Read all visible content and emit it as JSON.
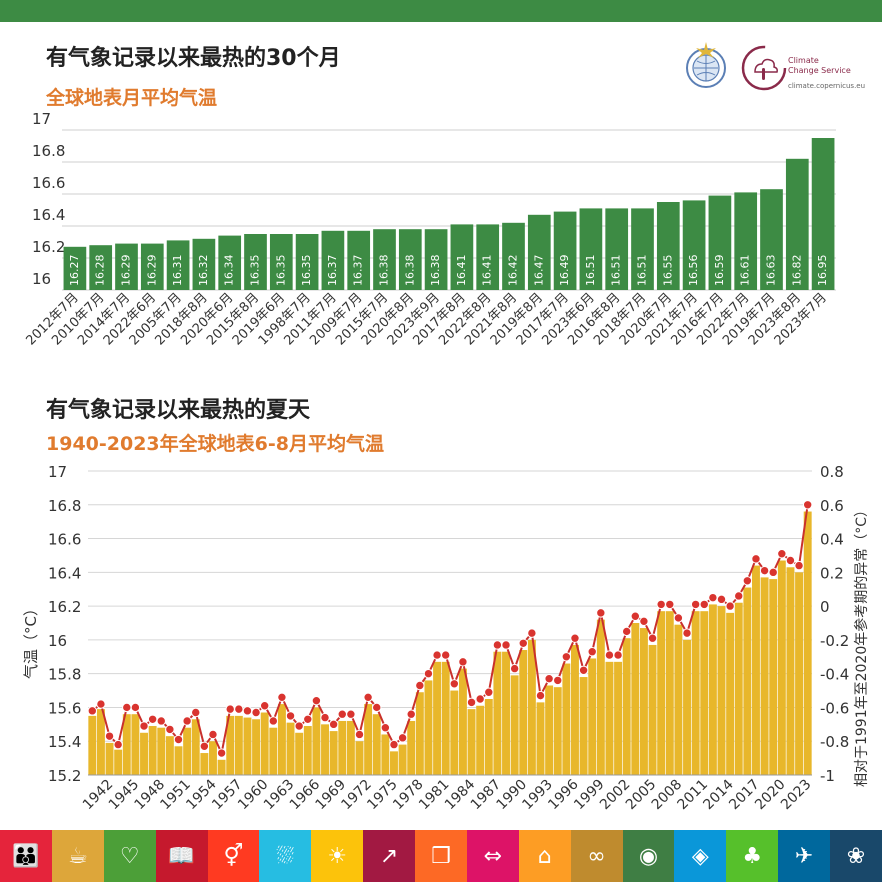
{
  "header": {
    "bar_color": "#3d8b44"
  },
  "chart1_title": "有气象记录以来最热的30个月",
  "chart1_subtitle": "全球地表月平均气温",
  "chart2_title": "有气象记录以来最热的夏天",
  "chart2_subtitle": "1940-2023年全球地表6-8月平均气温",
  "logos": {
    "c3s_line1": "Climate",
    "c3s_line2": "Change Service",
    "c3s_url": "climate.copernicus.eu"
  },
  "colors": {
    "title": "#222222",
    "subtitle": "#e07b2e",
    "bar_green": "#3d8b44",
    "bar_gold": "#e8b72b",
    "line_red": "#c9302c",
    "dot_red": "#d9342f"
  },
  "chart_data": [
    {
      "type": "bar",
      "title": "有气象记录以来最热的30个月",
      "subtitle": "全球地表月平均气温",
      "categories": [
        "2012年7月",
        "2010年7月",
        "2014年7月",
        "2022年6月",
        "2005年7月",
        "2018年8月",
        "2020年6月",
        "2015年8月",
        "2019年6月",
        "1998年7月",
        "2011年7月",
        "2009年7月",
        "2015年7月",
        "2020年8月",
        "2023年9月",
        "2017年8月",
        "2022年8月",
        "2021年8月",
        "2019年8月",
        "2017年7月",
        "2023年6月",
        "2016年8月",
        "2018年7月",
        "2020年7月",
        "2021年7月",
        "2016年7月",
        "2022年7月",
        "2019年7月",
        "2023年8月",
        "2023年7月"
      ],
      "values": [
        16.27,
        16.28,
        16.29,
        16.29,
        16.31,
        16.32,
        16.34,
        16.35,
        16.35,
        16.35,
        16.37,
        16.37,
        16.38,
        16.38,
        16.38,
        16.41,
        16.41,
        16.42,
        16.47,
        16.49,
        16.51,
        16.51,
        16.51,
        16.55,
        16.56,
        16.59,
        16.61,
        16.63,
        16.82,
        16.95
      ],
      "y_ticks": [
        "17",
        "16.8",
        "16.6",
        "16.4",
        "16.2",
        "16"
      ],
      "ylim": [
        16,
        17
      ]
    },
    {
      "type": "bar+line",
      "title": "有气象记录以来最热的夏天",
      "subtitle": "1940-2023年全球地表6-8月平均气温",
      "years_start": 1940,
      "x_tick_labels": [
        "1942",
        "1945",
        "1948",
        "1951",
        "1954",
        "1957",
        "1960",
        "1963",
        "1966",
        "1969",
        "1972",
        "1975",
        "1978",
        "1981",
        "1984",
        "1987",
        "1990",
        "1993",
        "1996",
        "1999",
        "2002",
        "2005",
        "2008",
        "2011",
        "2014",
        "2017",
        "2020",
        "2023"
      ],
      "values": [
        15.55,
        15.59,
        15.39,
        15.35,
        15.56,
        15.56,
        15.45,
        15.49,
        15.48,
        15.43,
        15.37,
        15.48,
        15.53,
        15.33,
        15.4,
        15.29,
        15.55,
        15.55,
        15.54,
        15.53,
        15.57,
        15.48,
        15.62,
        15.51,
        15.45,
        15.49,
        15.6,
        15.5,
        15.46,
        15.52,
        15.52,
        15.4,
        15.62,
        15.56,
        15.44,
        15.34,
        15.38,
        15.52,
        15.69,
        15.76,
        15.87,
        15.87,
        15.7,
        15.83,
        15.59,
        15.61,
        15.65,
        15.93,
        15.93,
        15.79,
        15.94,
        16.0,
        15.63,
        15.73,
        15.72,
        15.86,
        15.97,
        15.78,
        15.89,
        16.12,
        15.87,
        15.87,
        16.01,
        16.1,
        16.07,
        15.97,
        16.17,
        16.17,
        16.09,
        16.0,
        16.17,
        16.17,
        16.21,
        16.2,
        16.16,
        16.22,
        16.31,
        16.44,
        16.37,
        16.36,
        16.47,
        16.43,
        16.4,
        16.76
      ],
      "anomalies": [
        -0.62,
        -0.58,
        -0.77,
        -0.82,
        -0.6,
        -0.6,
        -0.71,
        -0.67,
        -0.68,
        -0.73,
        -0.79,
        -0.68,
        -0.63,
        -0.83,
        -0.76,
        -0.87,
        -0.61,
        -0.61,
        -0.62,
        -0.63,
        -0.59,
        -0.68,
        -0.54,
        -0.65,
        -0.71,
        -0.67,
        -0.56,
        -0.66,
        -0.7,
        -0.64,
        -0.64,
        -0.76,
        -0.54,
        -0.6,
        -0.72,
        -0.82,
        -0.78,
        -0.64,
        -0.47,
        -0.4,
        -0.29,
        -0.29,
        -0.46,
        -0.33,
        -0.57,
        -0.55,
        -0.51,
        -0.23,
        -0.23,
        -0.37,
        -0.22,
        -0.16,
        -0.53,
        -0.43,
        -0.44,
        -0.3,
        -0.19,
        -0.38,
        -0.27,
        -0.04,
        -0.29,
        -0.29,
        -0.15,
        -0.06,
        -0.09,
        -0.19,
        0.01,
        0.01,
        -0.07,
        -0.16,
        0.01,
        0.01,
        0.05,
        0.04,
        0.0,
        0.06,
        0.15,
        0.28,
        0.21,
        0.2,
        0.31,
        0.27,
        0.24,
        0.6
      ],
      "y_left_label": "气温（°C）",
      "y_right_label": "相对于1991年至2020年参考期的异常（°C）",
      "y_left_ticks": [
        "17",
        "16.8",
        "16.6",
        "16.4",
        "16.2",
        "16",
        "15.8",
        "15.6",
        "15.4",
        "15.2"
      ],
      "y_right_ticks": [
        "0.8",
        "0.6",
        "0.4",
        "0.2",
        "0",
        "-0.2",
        "-0.4",
        "-0.6",
        "-0.8",
        "-1"
      ],
      "ylim_left": [
        15.2,
        17
      ],
      "ylim_right": [
        -1,
        0.8
      ]
    }
  ],
  "sdg": [
    {
      "icon": "people-icon",
      "glyph": "👪",
      "color": "#e5243b"
    },
    {
      "icon": "bowl-icon",
      "glyph": "☕",
      "color": "#dda63a"
    },
    {
      "icon": "heartbeat-icon",
      "glyph": "♡",
      "color": "#4c9f38"
    },
    {
      "icon": "book-icon",
      "glyph": "📖",
      "color": "#c5192d"
    },
    {
      "icon": "gender-icon",
      "glyph": "⚥",
      "color": "#ff3a21"
    },
    {
      "icon": "water-icon",
      "glyph": "⛆",
      "color": "#26bde2"
    },
    {
      "icon": "sun-icon",
      "glyph": "☀",
      "color": "#fcc30b"
    },
    {
      "icon": "growth-chart-icon",
      "glyph": "↗",
      "color": "#a21942"
    },
    {
      "icon": "cubes-icon",
      "glyph": "❒",
      "color": "#fd6925"
    },
    {
      "icon": "equality-arrows-icon",
      "glyph": "⇔",
      "color": "#dd1367"
    },
    {
      "icon": "city-icon",
      "glyph": "⌂",
      "color": "#fd9d24"
    },
    {
      "icon": "infinity-icon",
      "glyph": "∞",
      "color": "#bf8b2e"
    },
    {
      "icon": "eye-globe-icon",
      "glyph": "◉",
      "color": "#3f7e44"
    },
    {
      "icon": "fish-icon",
      "glyph": "◈",
      "color": "#0a97d9"
    },
    {
      "icon": "tree-icon",
      "glyph": "♣",
      "color": "#56c02b"
    },
    {
      "icon": "dove-icon",
      "glyph": "✈",
      "color": "#00689d"
    },
    {
      "icon": "flower-icon",
      "glyph": "❀",
      "color": "#19486a"
    }
  ]
}
